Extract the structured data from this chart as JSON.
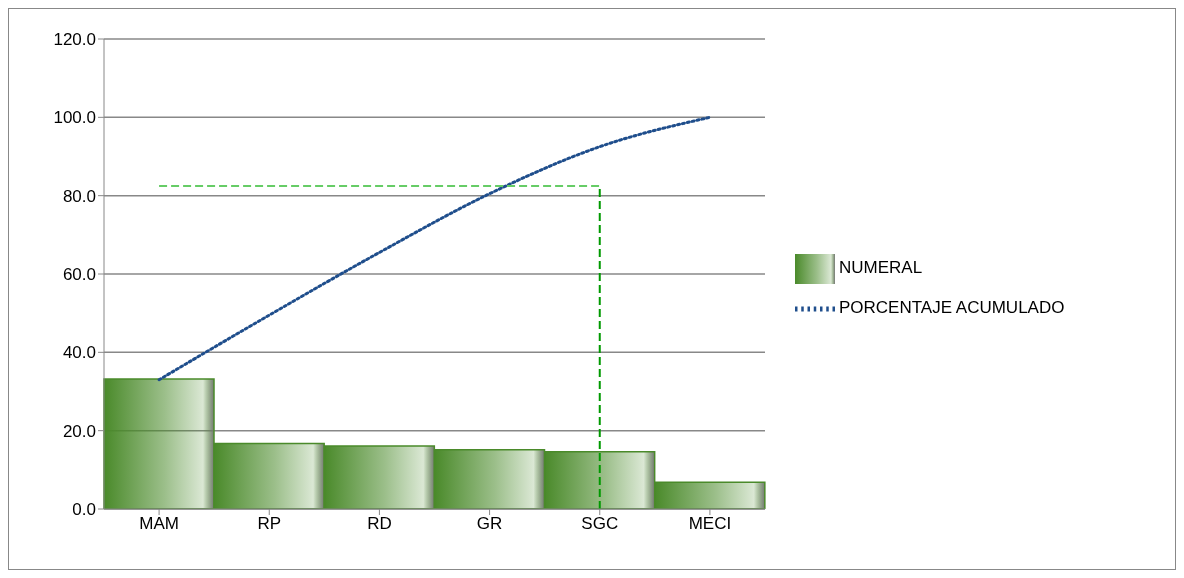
{
  "chart_data": {
    "type": "bar",
    "categories": [
      "MAM",
      "RP",
      "RD",
      "GR",
      "SGC",
      "MECI"
    ],
    "series": [
      {
        "name": "NUMERAL",
        "color": "#4a8a2a",
        "values": [
          33.2,
          16.7,
          16.1,
          15.1,
          14.6,
          6.8
        ]
      },
      {
        "name": "PORCENTAJE ACUMULADO",
        "type": "line",
        "color": "#1f4e8c",
        "line_style": "dotted",
        "marker": "none",
        "values": [
          33.0,
          49.5,
          65.5,
          80.5,
          92.5,
          100.0
        ]
      }
    ],
    "ylim": [
      0,
      120
    ],
    "yticks": [
      {
        "value": 0,
        "label": "0.0"
      },
      {
        "value": 20,
        "label": "20.0"
      },
      {
        "value": 40,
        "label": "40.0"
      },
      {
        "value": 60,
        "label": "60.0"
      },
      {
        "value": 80,
        "label": "80.0"
      },
      {
        "value": 100,
        "label": "100.0"
      },
      {
        "value": 120,
        "label": "120.0"
      }
    ],
    "grid": "y",
    "legend": "right",
    "ref_lines": [
      {
        "axis": "y",
        "value": 82.5,
        "color": "#66cc66",
        "line_style": "dashed"
      },
      {
        "axis": "x",
        "value": "SGC",
        "color": "#009900",
        "line_style": "dashed"
      }
    ]
  }
}
